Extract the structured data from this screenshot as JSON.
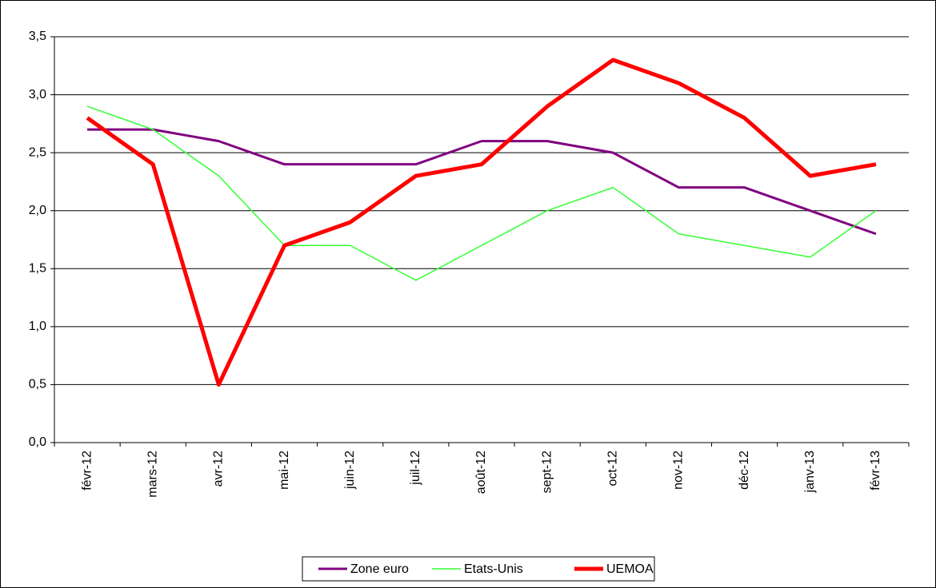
{
  "chart_data": {
    "type": "line",
    "categories": [
      "févr-12",
      "mars-12",
      "avr-12",
      "mai-12",
      "juin-12",
      "juil-12",
      "août-12",
      "sept-12",
      "oct-12",
      "nov-12",
      "déc-12",
      "janv-13",
      "févr-13"
    ],
    "series": [
      {
        "name": "Zone euro",
        "color": "#800080",
        "values": [
          2.7,
          2.7,
          2.6,
          2.4,
          2.4,
          2.4,
          2.6,
          2.6,
          2.5,
          2.2,
          2.2,
          2.0,
          1.8
        ]
      },
      {
        "name": "Etats-Unis",
        "color": "#33ff33",
        "values": [
          2.9,
          2.7,
          2.3,
          1.7,
          1.7,
          1.4,
          1.7,
          2.0,
          2.2,
          1.8,
          1.7,
          1.6,
          2.0
        ]
      },
      {
        "name": "UEMOA",
        "color": "#ff0000",
        "values": [
          2.8,
          2.4,
          0.5,
          1.7,
          1.9,
          2.3,
          2.4,
          2.9,
          3.3,
          3.1,
          2.8,
          2.3,
          2.4
        ]
      }
    ],
    "ylim": [
      0,
      3.5
    ],
    "yticks": [
      {
        "value": 0,
        "label": "0,0"
      },
      {
        "value": 0.5,
        "label": "0,5"
      },
      {
        "value": 1,
        "label": "1,0"
      },
      {
        "value": 1.5,
        "label": "1,5"
      },
      {
        "value": 2,
        "label": "2,0"
      },
      {
        "value": 2.5,
        "label": "2,5"
      },
      {
        "value": 3,
        "label": "3,0"
      },
      {
        "value": 3.5,
        "label": "3,5"
      }
    ],
    "grid": true,
    "legend": "bottom"
  }
}
